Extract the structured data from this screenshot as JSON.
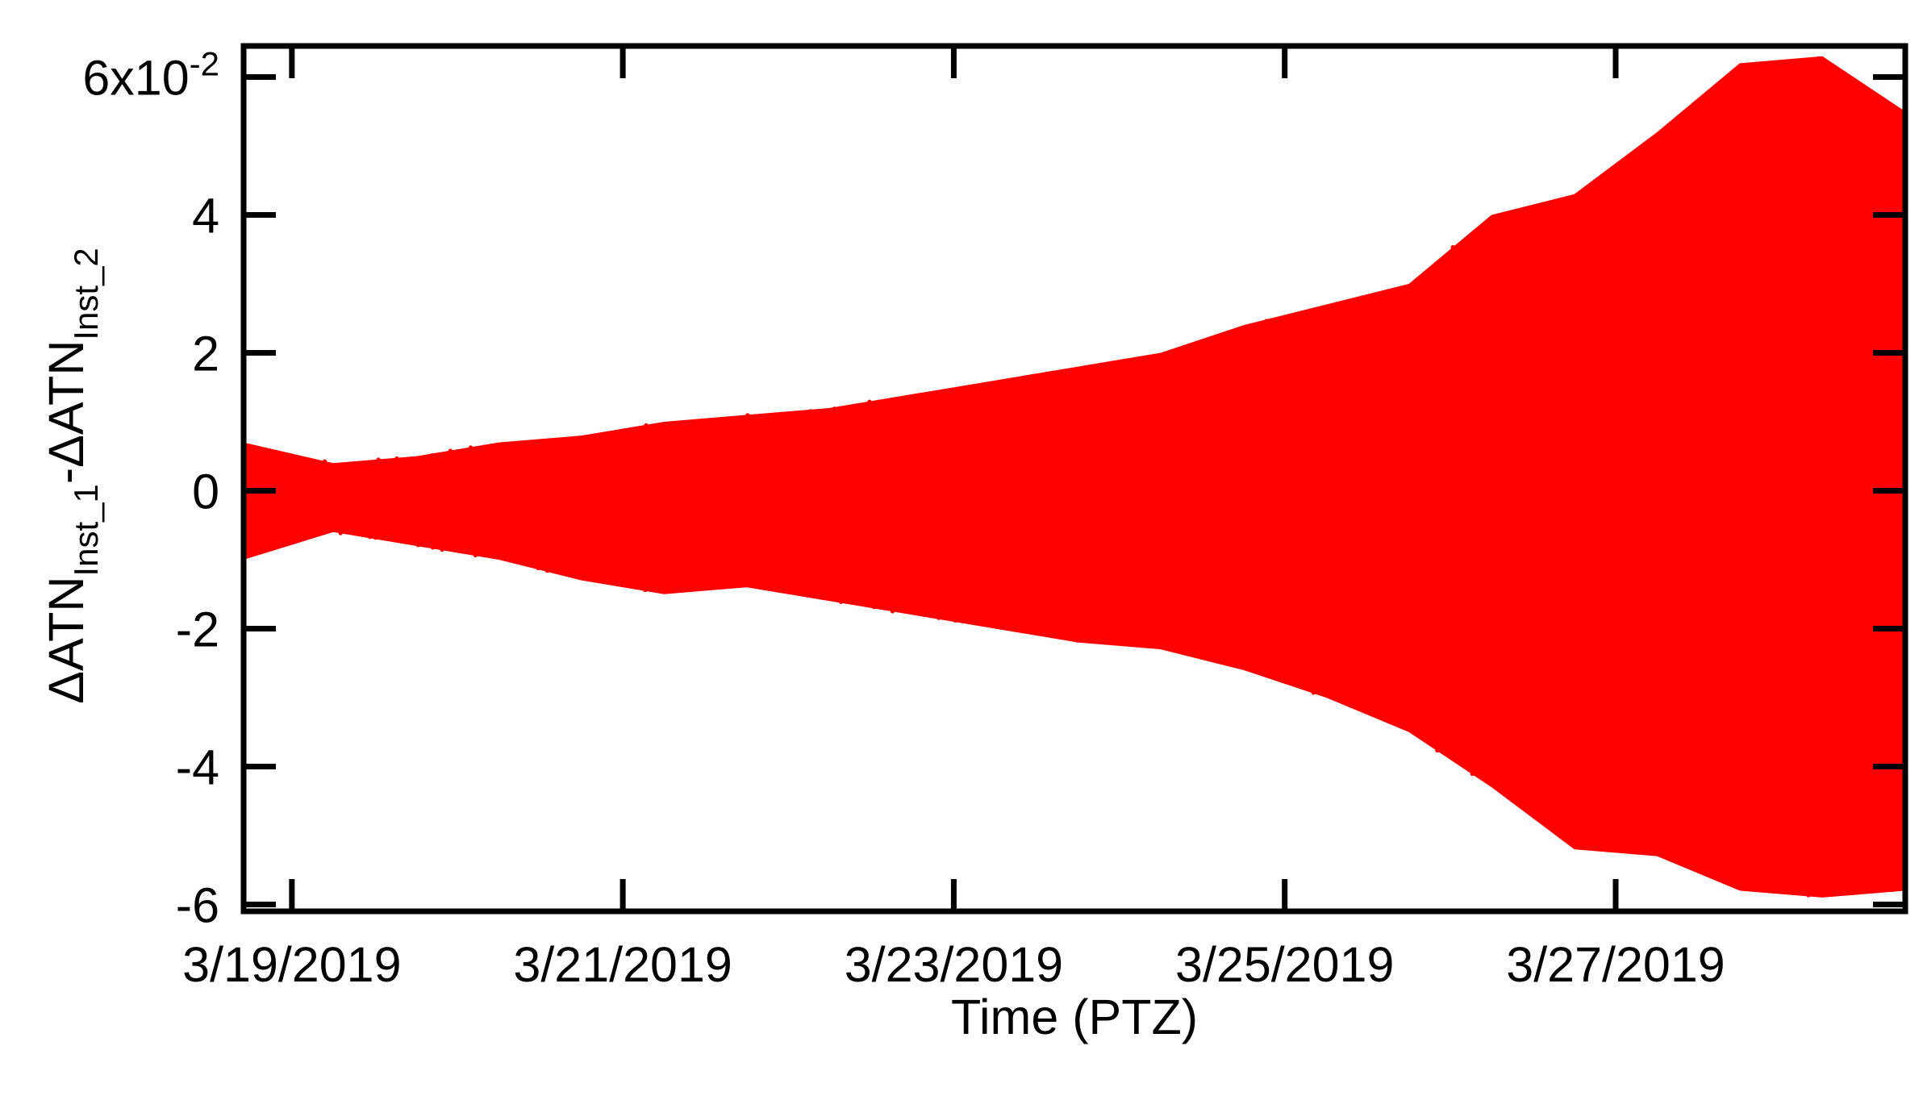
{
  "chart_data": {
    "type": "line",
    "ylabel": {
      "parts": [
        {
          "text": "ΔATN",
          "sub": false
        },
        {
          "text": "Inst_1",
          "sub": true
        },
        {
          "text": "-ΔATN",
          "sub": false
        },
        {
          "text": "Inst_2",
          "sub": true
        }
      ]
    },
    "xlabel": "Time (PTZ)",
    "xlim": [
      "2019-03-18T17:00",
      "2019-03-28T18:00"
    ],
    "ylim": [
      -0.061,
      0.0645
    ],
    "x_ticks": [
      "3/19/2019",
      "3/21/2019",
      "3/23/2019",
      "3/25/2019",
      "3/27/2019"
    ],
    "x_tick_dates": [
      "2019-03-19",
      "2019-03-21",
      "2019-03-23",
      "2019-03-25",
      "2019-03-27"
    ],
    "y_ticks": [
      {
        "value": 0.06,
        "label": "6x10",
        "exponent": "-2"
      },
      {
        "value": 0.04,
        "label": "4"
      },
      {
        "value": 0.02,
        "label": "2"
      },
      {
        "value": 0.0,
        "label": "0"
      },
      {
        "value": -0.02,
        "label": "-2"
      },
      {
        "value": -0.04,
        "label": "-4"
      },
      {
        "value": -0.06,
        "label": "-6"
      }
    ],
    "grid": false,
    "series_color": "#ff0000",
    "series": [
      {
        "x": [
          "2019-03-18T17:00",
          "2019-03-19T06:00",
          "2019-03-19T18:00",
          "2019-03-20T06:00",
          "2019-03-20T18:00",
          "2019-03-21T06:00",
          "2019-03-21T18:00",
          "2019-03-22T06:00",
          "2019-03-22T18:00",
          "2019-03-23T06:00",
          "2019-03-23T18:00",
          "2019-03-24T06:00",
          "2019-03-24T18:00",
          "2019-03-25T06:00",
          "2019-03-25T18:00",
          "2019-03-26T06:00",
          "2019-03-26T18:00",
          "2019-03-27T06:00",
          "2019-03-27T18:00",
          "2019-03-28T06:00",
          "2019-03-28T18:00"
        ],
        "upper": [
          0.007,
          0.004,
          0.005,
          0.007,
          0.008,
          0.01,
          0.011,
          0.012,
          0.014,
          0.016,
          0.018,
          0.02,
          0.024,
          0.027,
          0.03,
          0.04,
          0.043,
          0.052,
          0.062,
          0.063,
          0.055
        ],
        "lower": [
          -0.01,
          -0.006,
          -0.008,
          -0.01,
          -0.013,
          -0.015,
          -0.014,
          -0.016,
          -0.018,
          -0.02,
          -0.022,
          -0.023,
          -0.026,
          -0.03,
          -0.035,
          -0.043,
          -0.052,
          -0.053,
          -0.058,
          -0.059,
          -0.058
        ]
      }
    ]
  }
}
